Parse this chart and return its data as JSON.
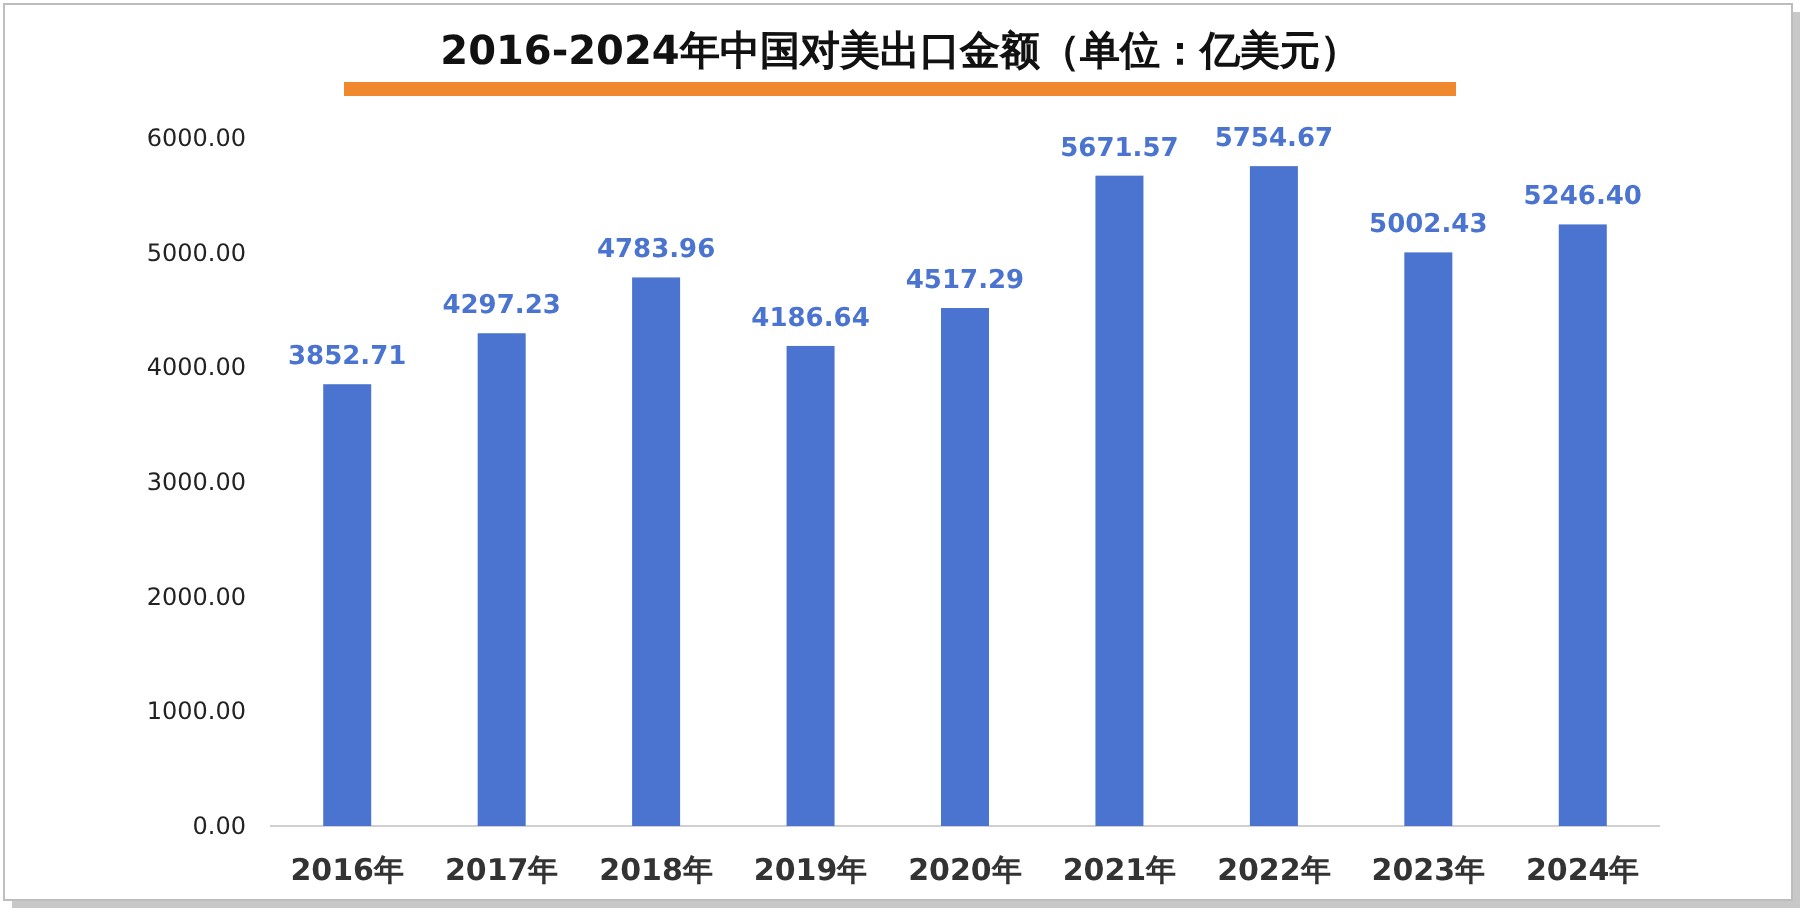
{
  "chart_data": {
    "type": "bar",
    "title": "2016-2024年中国对美出口金额（单位：亿美元）",
    "categories": [
      "2016年",
      "2017年",
      "2018年",
      "2019年",
      "2020年",
      "2021年",
      "2022年",
      "2023年",
      "2024年"
    ],
    "values": [
      3852.71,
      4297.23,
      4783.96,
      4186.64,
      4517.29,
      5671.57,
      5754.67,
      5002.43,
      5246.4
    ],
    "value_labels": [
      "3852.71",
      "4297.23",
      "4783.96",
      "4186.64",
      "4517.29",
      "5671.57",
      "5754.67",
      "5002.43",
      "5246.40"
    ],
    "color": "#4a74cf",
    "ylim": [
      0,
      6000
    ],
    "yticks": [
      {
        "value": 0,
        "label": "0.00"
      },
      {
        "value": 1000,
        "label": "1000.00"
      },
      {
        "value": 2000,
        "label": "2000.00"
      },
      {
        "value": 3000,
        "label": "3000.00"
      },
      {
        "value": 4000,
        "label": "4000.00"
      },
      {
        "value": 5000,
        "label": "5000.00"
      },
      {
        "value": 6000,
        "label": "6000.00"
      }
    ],
    "grid": false
  }
}
